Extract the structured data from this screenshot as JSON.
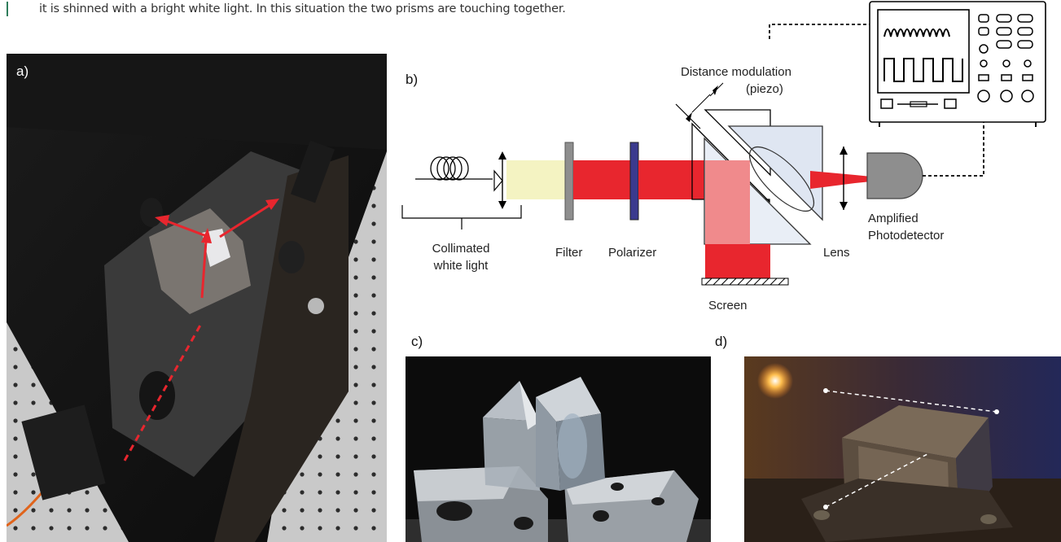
{
  "caption": {
    "text": "it is shinned with a bright white light. In this situation the two prisms are touching together."
  },
  "panels": {
    "a": {
      "label": "a)"
    },
    "b": {
      "label": "b)",
      "labels": {
        "collimated": "Collimated",
        "white_light": "white light",
        "filter": "Filter",
        "polarizer": "Polarizer",
        "distance_modulation": "Distance modulation",
        "piezo": "(piezo)",
        "screen": "Screen",
        "lens": "Lens",
        "amplified": "Amplified",
        "photodetector": "Photodetector"
      }
    },
    "c": {
      "label": "c)"
    },
    "d": {
      "label": "d)"
    }
  },
  "colors": {
    "accent_bar": "#2e7d5b",
    "beam_red": "#e8262e",
    "beam_pink": "#f08a8c",
    "white_light": "#f4f3c2"
  }
}
